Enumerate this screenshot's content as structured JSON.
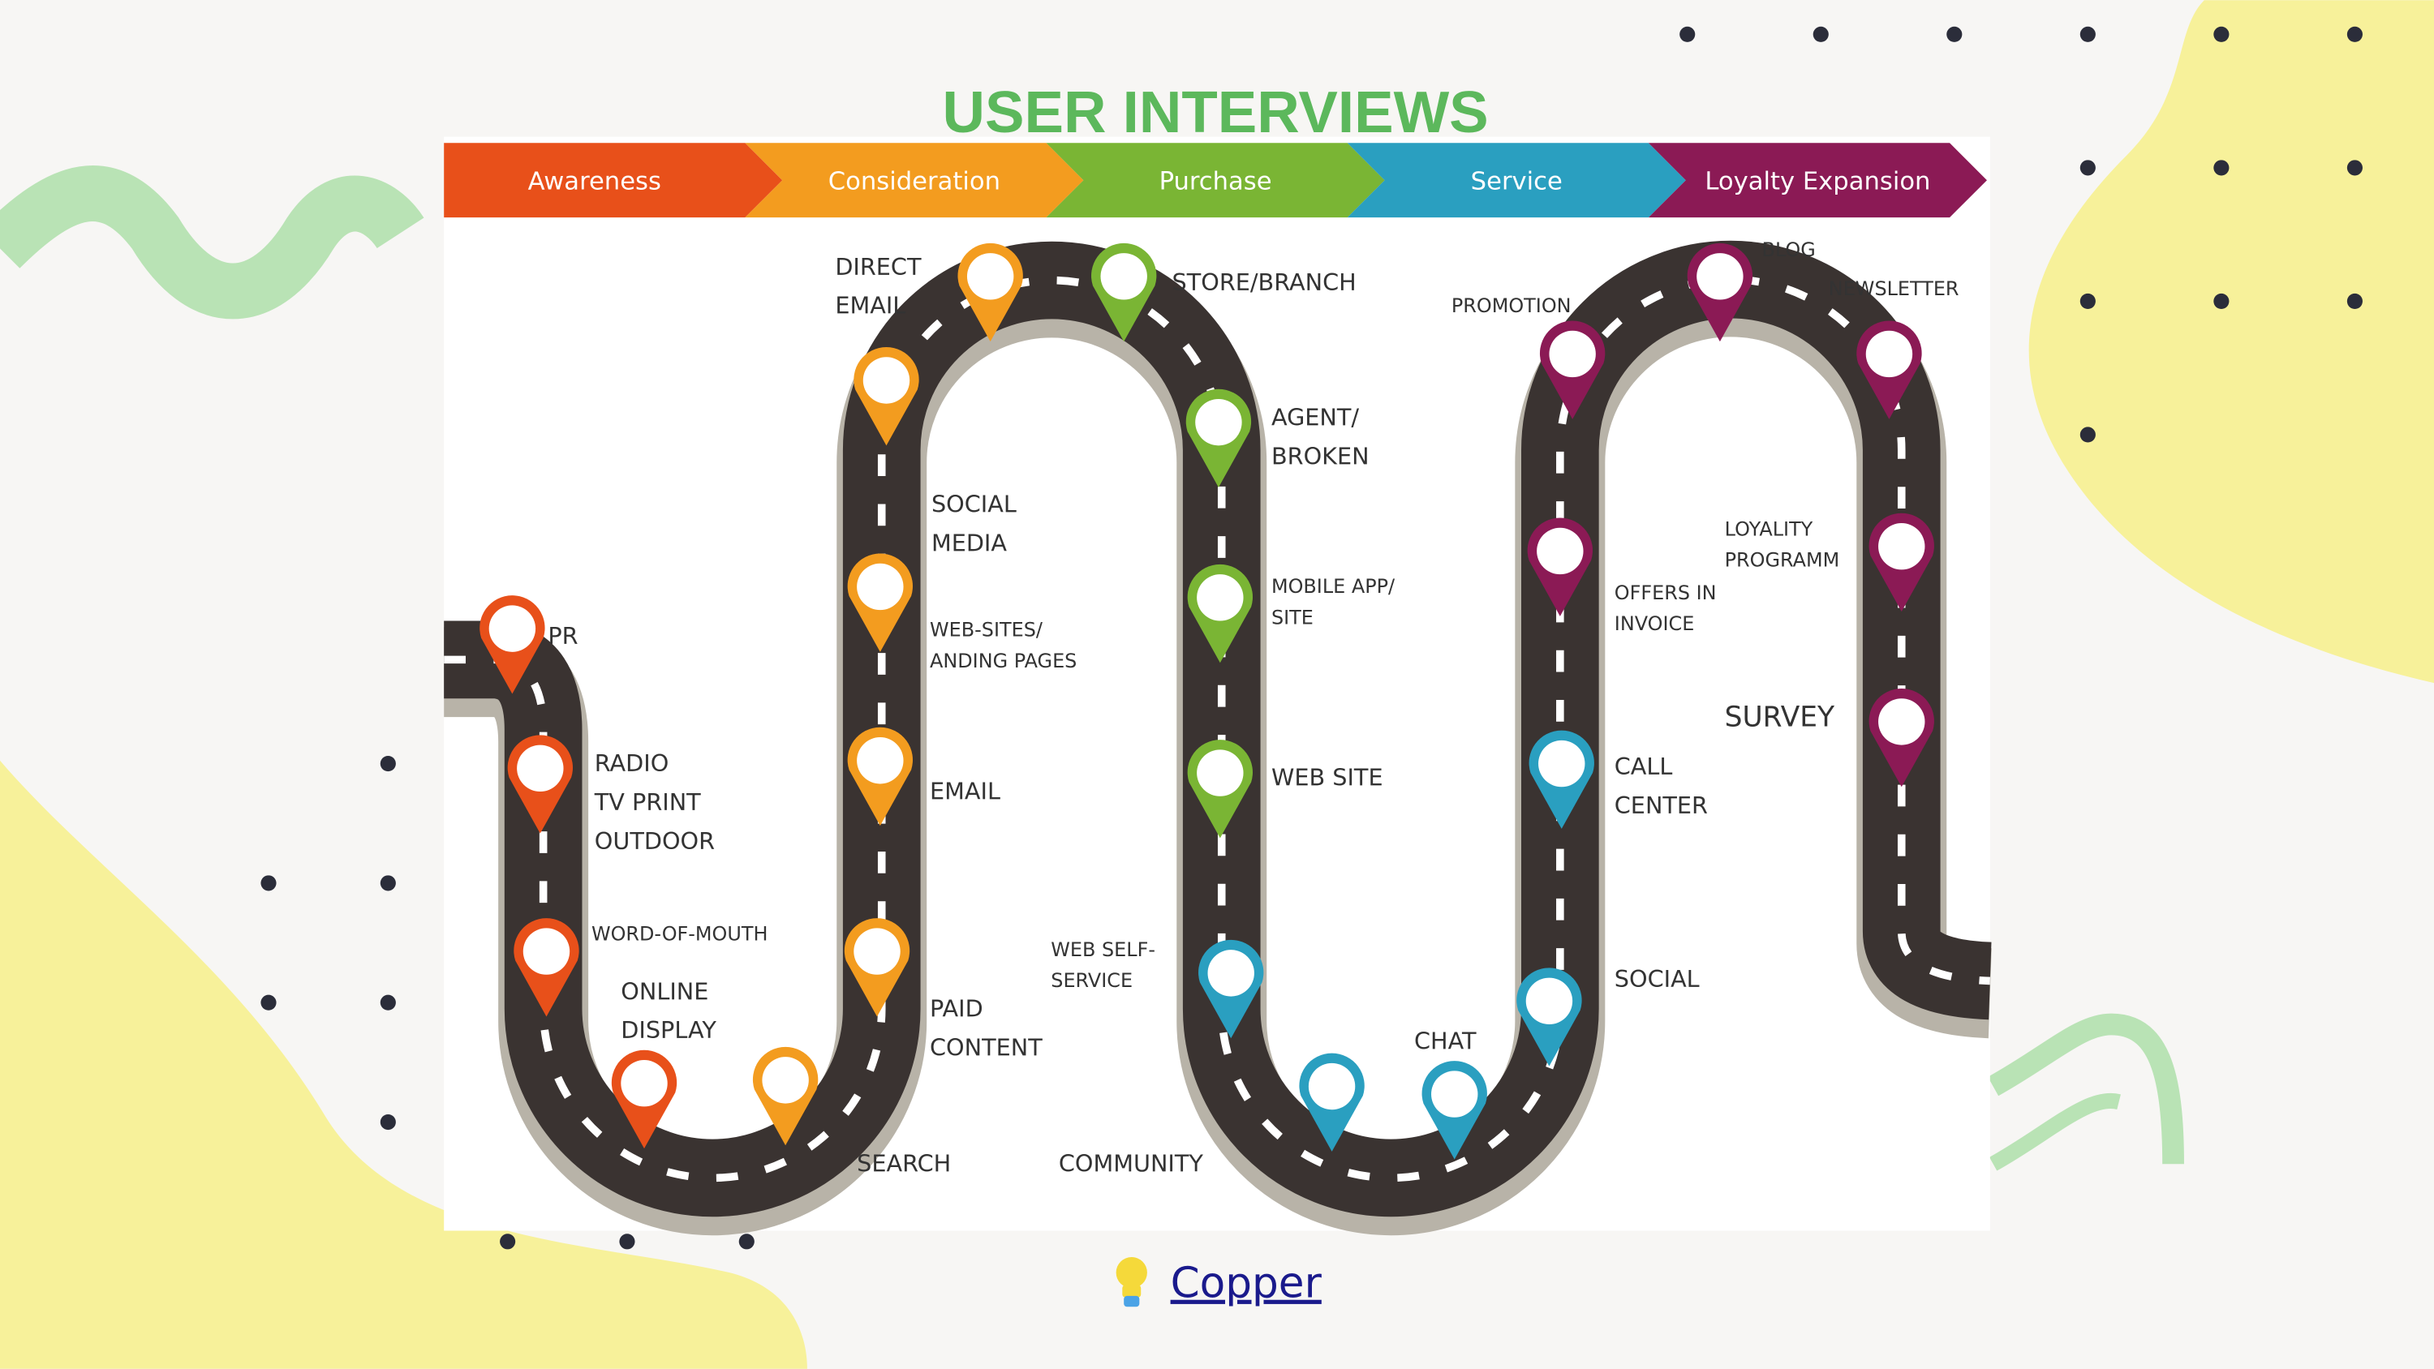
{
  "slide": {
    "title": "USER INTERVIEWS",
    "source_link": {
      "label": "Copper",
      "icon": "lightbulb-icon"
    }
  },
  "colors": {
    "title": "#5cb85c",
    "awareness": "#e8501a",
    "consideration": "#f39c1f",
    "purchase": "#7ab534",
    "service": "#2a9fc0",
    "loyalty": "#8b1a55",
    "road": "#3a3331",
    "link": "#1a1a8c",
    "blob_yellow": "#f7f19a",
    "wave_green": "#b9e3b5"
  },
  "stages": [
    {
      "label": "Awareness",
      "color": "#e8501a"
    },
    {
      "label": "Consideration",
      "color": "#f39c1f"
    },
    {
      "label": "Purchase",
      "color": "#7ab534"
    },
    {
      "label": "Service",
      "color": "#2a9fc0"
    },
    {
      "label": "Loyalty Expansion",
      "color": "#8b1a55"
    }
  ],
  "touchpoints": [
    {
      "stage": "awareness",
      "lines": [
        "PR"
      ]
    },
    {
      "stage": "awareness",
      "lines": [
        "RADIO",
        "TV PRINT",
        "OUTDOOR"
      ]
    },
    {
      "stage": "awareness",
      "lines": [
        "WORD-OF-MOUTH"
      ]
    },
    {
      "stage": "awareness",
      "lines": [
        "ONLINE",
        "DISPLAY"
      ]
    },
    {
      "stage": "consideration",
      "lines": [
        "SEARCH"
      ]
    },
    {
      "stage": "consideration",
      "lines": [
        "PAID",
        "CONTENT"
      ]
    },
    {
      "stage": "consideration",
      "lines": [
        "EMAIL"
      ]
    },
    {
      "stage": "consideration",
      "lines": [
        "WEB-SITES/",
        "ANDING PAGES"
      ]
    },
    {
      "stage": "consideration",
      "lines": [
        "SOCIAL",
        "MEDIA"
      ]
    },
    {
      "stage": "consideration",
      "lines": [
        "DIRECT",
        "EMAIL"
      ]
    },
    {
      "stage": "purchase",
      "lines": [
        "STORE/BRANCH"
      ]
    },
    {
      "stage": "purchase",
      "lines": [
        "AGENT/",
        "BROKEN"
      ]
    },
    {
      "stage": "purchase",
      "lines": [
        "MOBILE APP/",
        "SITE"
      ]
    },
    {
      "stage": "purchase",
      "lines": [
        "WEB SITE"
      ]
    },
    {
      "stage": "service",
      "lines": [
        "WEB SELF-",
        "SERVICE"
      ]
    },
    {
      "stage": "service",
      "lines": [
        "COMMUNITY"
      ]
    },
    {
      "stage": "service",
      "lines": [
        "CHAT"
      ]
    },
    {
      "stage": "service",
      "lines": [
        "SOCIAL"
      ]
    },
    {
      "stage": "service",
      "lines": [
        "CALL",
        "CENTER"
      ]
    },
    {
      "stage": "loyalty",
      "lines": [
        "OFFERS IN",
        "INVOICE"
      ]
    },
    {
      "stage": "loyalty",
      "lines": [
        "PROMOTION"
      ]
    },
    {
      "stage": "loyalty",
      "lines": [
        "BLOG"
      ]
    },
    {
      "stage": "loyalty",
      "lines": [
        "NEWSLETTER"
      ]
    },
    {
      "stage": "loyalty",
      "lines": [
        "LOYALITY",
        "PROGRAMM"
      ]
    },
    {
      "stage": "loyalty",
      "lines": [
        "SURVEY"
      ]
    }
  ]
}
